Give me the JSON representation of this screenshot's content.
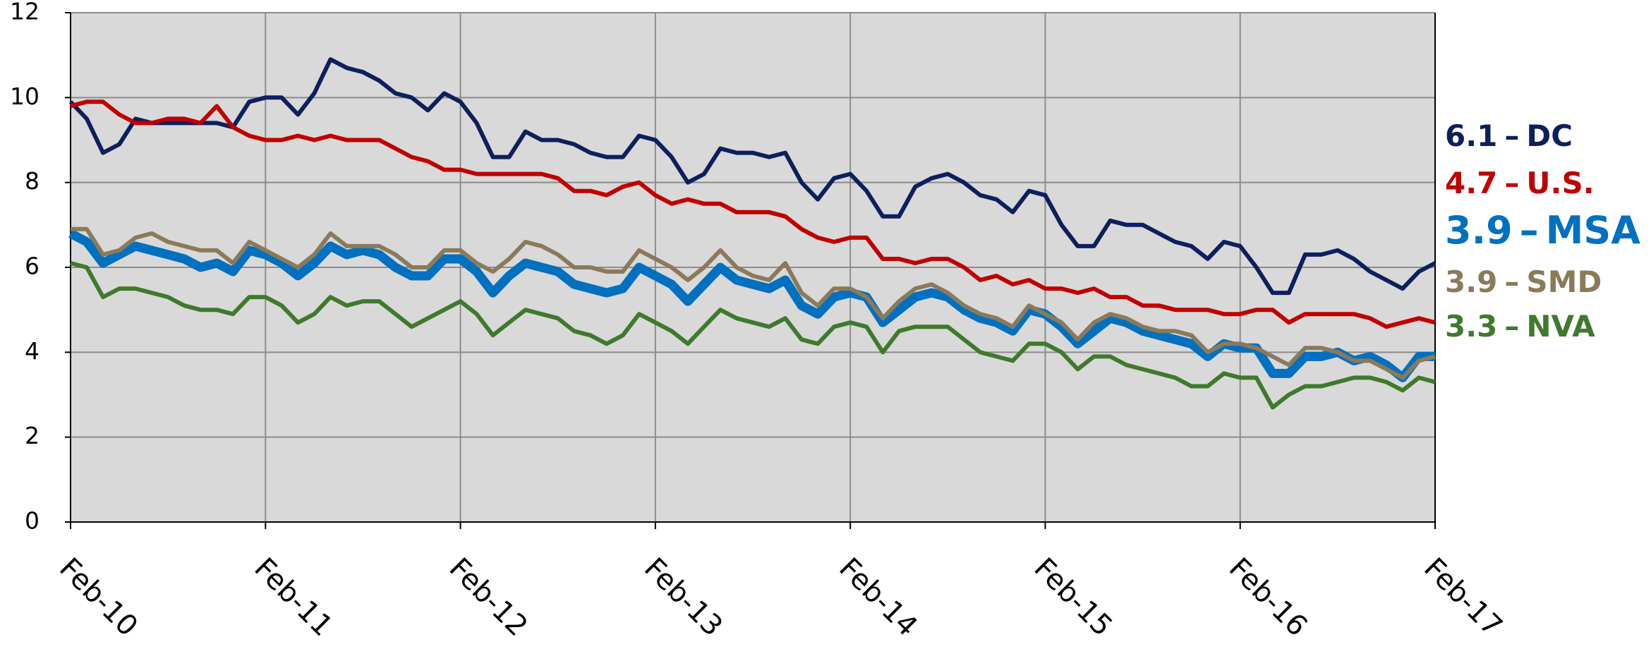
{
  "chart_data": {
    "type": "line",
    "categories": [
      "Feb-10",
      null,
      null,
      null,
      null,
      null,
      null,
      null,
      null,
      null,
      null,
      null,
      "Feb-11",
      null,
      null,
      null,
      null,
      null,
      null,
      null,
      null,
      null,
      null,
      null,
      "Feb-12",
      null,
      null,
      null,
      null,
      null,
      null,
      null,
      null,
      null,
      null,
      null,
      "Feb-13",
      null,
      null,
      null,
      null,
      null,
      null,
      null,
      null,
      null,
      null,
      null,
      "Feb-14",
      null,
      null,
      null,
      null,
      null,
      null,
      null,
      null,
      null,
      null,
      null,
      "Feb-15",
      null,
      null,
      null,
      null,
      null,
      null,
      null,
      null,
      null,
      null,
      null,
      "Feb-16",
      null,
      null,
      null,
      null,
      null,
      null,
      null,
      null,
      null,
      null,
      null,
      "Feb-17"
    ],
    "ylim": [
      0,
      12
    ],
    "yticks": [
      0,
      2,
      4,
      6,
      8,
      10,
      12
    ],
    "grid": true,
    "label_separator": "–",
    "series": [
      {
        "name": "DC",
        "color": "#0d1f5c",
        "end_label": "6.1",
        "values": [
          9.9,
          9.5,
          8.7,
          8.9,
          9.5,
          9.4,
          9.4,
          9.4,
          9.4,
          9.4,
          9.3,
          9.9,
          10.0,
          10.0,
          9.6,
          10.1,
          10.9,
          10.7,
          10.6,
          10.4,
          10.1,
          10.0,
          9.7,
          10.1,
          9.9,
          9.4,
          8.6,
          8.6,
          9.2,
          9.0,
          9.0,
          8.9,
          8.7,
          8.6,
          8.6,
          9.1,
          9.0,
          8.6,
          8.0,
          8.2,
          8.8,
          8.7,
          8.7,
          8.6,
          8.7,
          8.0,
          7.6,
          8.1,
          8.2,
          7.8,
          7.2,
          7.2,
          7.9,
          8.1,
          8.2,
          8.0,
          7.7,
          7.6,
          7.3,
          7.8,
          7.7,
          7.0,
          6.5,
          6.5,
          7.1,
          7.0,
          7.0,
          6.8,
          6.6,
          6.5,
          6.2,
          6.6,
          6.5,
          6.0,
          5.4,
          5.4,
          6.3,
          6.3,
          6.4,
          6.2,
          5.9,
          5.7,
          5.5,
          5.9,
          6.1
        ]
      },
      {
        "name": "U.S.",
        "color": "#c00000",
        "end_label": "4.7",
        "values": [
          9.8,
          9.9,
          9.9,
          9.6,
          9.4,
          9.4,
          9.5,
          9.5,
          9.4,
          9.8,
          9.3,
          9.1,
          9.0,
          9.0,
          9.1,
          9.0,
          9.1,
          9.0,
          9.0,
          9.0,
          8.8,
          8.6,
          8.5,
          8.3,
          8.3,
          8.2,
          8.2,
          8.2,
          8.2,
          8.2,
          8.1,
          7.8,
          7.8,
          7.7,
          7.9,
          8.0,
          7.7,
          7.5,
          7.6,
          7.5,
          7.5,
          7.3,
          7.3,
          7.3,
          7.2,
          6.9,
          6.7,
          6.6,
          6.7,
          6.7,
          6.2,
          6.2,
          6.1,
          6.2,
          6.2,
          6.0,
          5.7,
          5.8,
          5.6,
          5.7,
          5.5,
          5.5,
          5.4,
          5.5,
          5.3,
          5.3,
          5.1,
          5.1,
          5.0,
          5.0,
          5.0,
          4.9,
          4.9,
          5.0,
          5.0,
          4.7,
          4.9,
          4.9,
          4.9,
          4.9,
          4.8,
          4.6,
          4.7,
          4.8,
          4.7
        ]
      },
      {
        "name": "MSA",
        "color": "#0070c0",
        "end_label": "3.9",
        "width": 13,
        "emphasis": true,
        "values": [
          6.8,
          6.6,
          6.1,
          6.3,
          6.5,
          6.4,
          6.3,
          6.2,
          6.0,
          6.1,
          5.9,
          6.4,
          6.3,
          6.1,
          5.8,
          6.1,
          6.5,
          6.3,
          6.4,
          6.3,
          6.0,
          5.8,
          5.8,
          6.2,
          6.2,
          5.9,
          5.4,
          5.8,
          6.1,
          6.0,
          5.9,
          5.6,
          5.5,
          5.4,
          5.5,
          6.0,
          5.8,
          5.6,
          5.2,
          5.6,
          6.0,
          5.7,
          5.6,
          5.5,
          5.7,
          5.1,
          4.9,
          5.3,
          5.4,
          5.3,
          4.7,
          5.0,
          5.3,
          5.4,
          5.3,
          5.0,
          4.8,
          4.7,
          4.5,
          5.0,
          4.9,
          4.6,
          4.2,
          4.5,
          4.8,
          4.7,
          4.5,
          4.4,
          4.3,
          4.2,
          3.9,
          4.2,
          4.1,
          4.1,
          3.5,
          3.5,
          3.9,
          3.9,
          4.0,
          3.8,
          3.9,
          3.7,
          3.4,
          3.9,
          3.9
        ]
      },
      {
        "name": "SMD",
        "color": "#8b7a5a",
        "end_label": "3.9",
        "values": [
          6.9,
          6.9,
          6.3,
          6.4,
          6.7,
          6.8,
          6.6,
          6.5,
          6.4,
          6.4,
          6.1,
          6.6,
          6.4,
          6.2,
          6.0,
          6.3,
          6.8,
          6.5,
          6.5,
          6.5,
          6.3,
          6.0,
          6.0,
          6.4,
          6.4,
          6.1,
          5.9,
          6.2,
          6.6,
          6.5,
          6.3,
          6.0,
          6.0,
          5.9,
          5.9,
          6.4,
          6.2,
          6.0,
          5.7,
          6.0,
          6.4,
          6.0,
          5.8,
          5.7,
          6.1,
          5.4,
          5.1,
          5.5,
          5.5,
          5.3,
          4.8,
          5.2,
          5.5,
          5.6,
          5.4,
          5.1,
          4.9,
          4.8,
          4.6,
          5.1,
          4.9,
          4.7,
          4.3,
          4.7,
          4.9,
          4.8,
          4.6,
          4.5,
          4.5,
          4.4,
          4.0,
          4.2,
          4.2,
          4.1,
          3.9,
          3.7,
          4.1,
          4.1,
          4.0,
          3.8,
          3.8,
          3.6,
          3.4,
          3.8,
          3.9
        ]
      },
      {
        "name": "NVA",
        "color": "#3f7a2c",
        "end_label": "3.3",
        "values": [
          6.1,
          6.0,
          5.3,
          5.5,
          5.5,
          5.4,
          5.3,
          5.1,
          5.0,
          5.0,
          4.9,
          5.3,
          5.3,
          5.1,
          4.7,
          4.9,
          5.3,
          5.1,
          5.2,
          5.2,
          4.9,
          4.6,
          4.8,
          5.0,
          5.2,
          4.9,
          4.4,
          4.7,
          5.0,
          4.9,
          4.8,
          4.5,
          4.4,
          4.2,
          4.4,
          4.9,
          4.7,
          4.5,
          4.2,
          4.6,
          5.0,
          4.8,
          4.7,
          4.6,
          4.8,
          4.3,
          4.2,
          4.6,
          4.7,
          4.6,
          4.0,
          4.5,
          4.6,
          4.6,
          4.6,
          4.3,
          4.0,
          3.9,
          3.8,
          4.2,
          4.2,
          4.0,
          3.6,
          3.9,
          3.9,
          3.7,
          3.6,
          3.5,
          3.4,
          3.2,
          3.2,
          3.5,
          3.4,
          3.4,
          2.7,
          3.0,
          3.2,
          3.2,
          3.3,
          3.4,
          3.4,
          3.3,
          3.1,
          3.4,
          3.3
        ]
      }
    ]
  }
}
